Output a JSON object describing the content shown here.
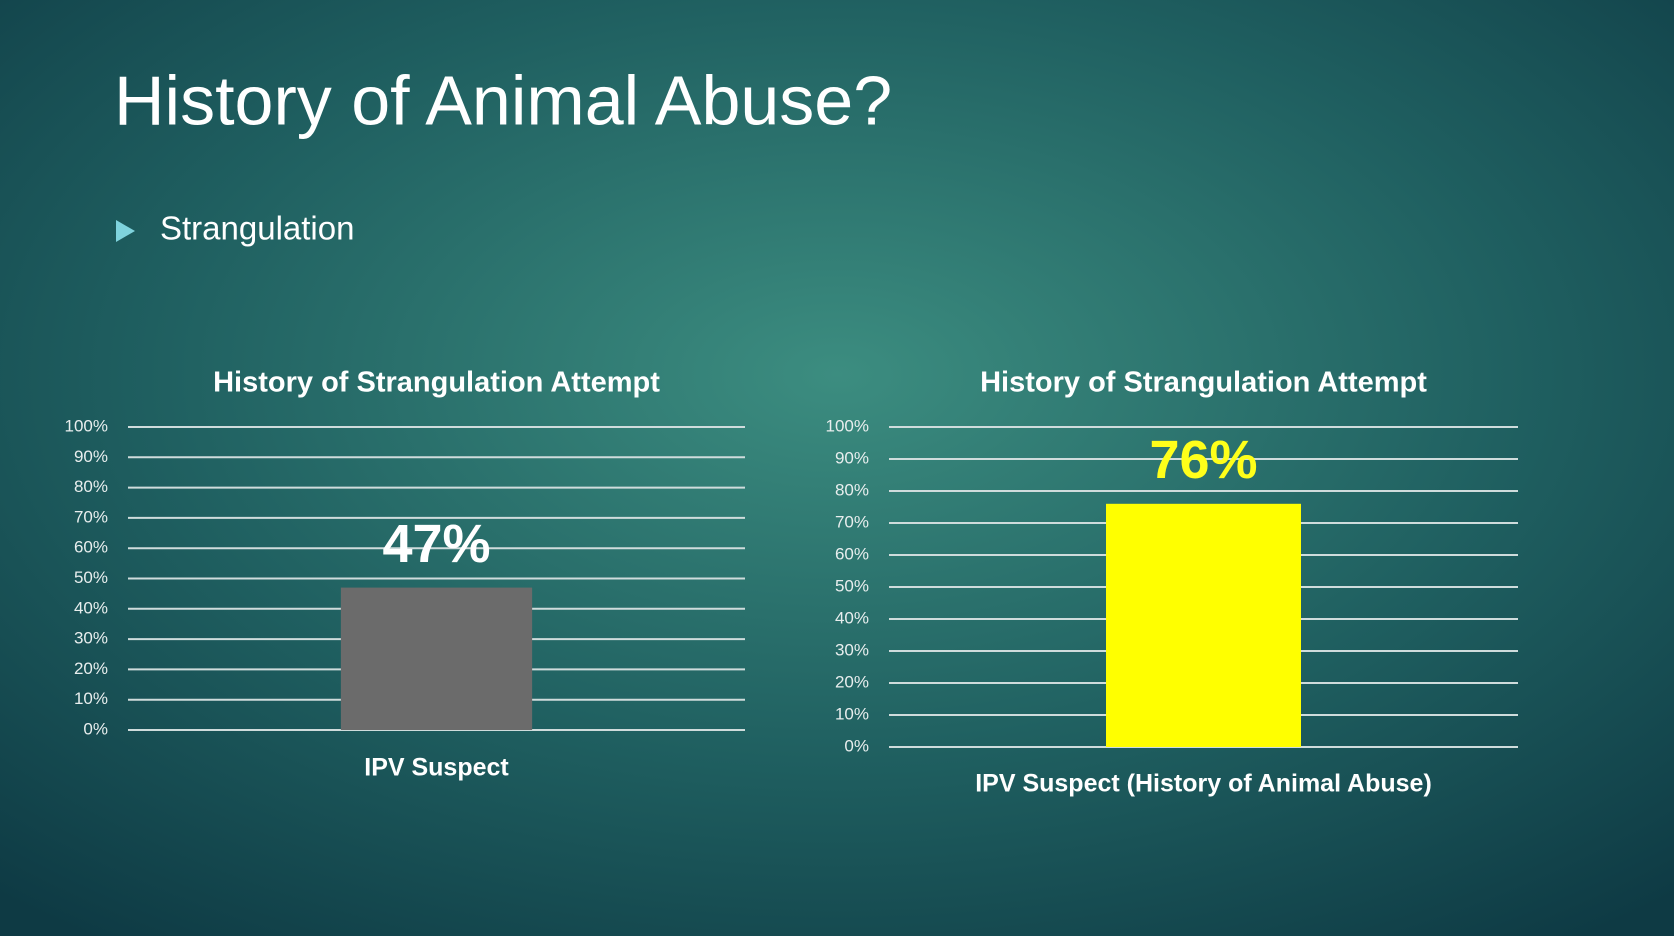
{
  "slide": {
    "title": "History of Animal Abuse?",
    "bullet": "Strangulation"
  },
  "chart_data": [
    {
      "type": "bar",
      "title": "History of Strangulation Attempt",
      "categories": [
        "IPV Suspect"
      ],
      "values": [
        47
      ],
      "value_labels": [
        "47%"
      ],
      "color": "#6b6b6b",
      "value_label_color": "#ffffff",
      "ylim": [
        0,
        100
      ],
      "yticks": [
        {
          "value": 0,
          "label": "0%"
        },
        {
          "value": 10,
          "label": "10%"
        },
        {
          "value": 20,
          "label": "20%"
        },
        {
          "value": 30,
          "label": "30%"
        },
        {
          "value": 40,
          "label": "40%"
        },
        {
          "value": 50,
          "label": "50%"
        },
        {
          "value": 60,
          "label": "60%"
        },
        {
          "value": 70,
          "label": "70%"
        },
        {
          "value": 80,
          "label": "80%"
        },
        {
          "value": 90,
          "label": "90%"
        },
        {
          "value": 100,
          "label": "100%"
        }
      ],
      "grid": true
    },
    {
      "type": "bar",
      "title": "History of Strangulation Attempt",
      "categories": [
        "IPV Suspect (History of Animal Abuse)"
      ],
      "values": [
        76
      ],
      "value_labels": [
        "76%"
      ],
      "color": "#ffff00",
      "value_label_color": "#ffff1a",
      "ylim": [
        0,
        100
      ],
      "yticks": [
        {
          "value": 0,
          "label": "0%"
        },
        {
          "value": 10,
          "label": "10%"
        },
        {
          "value": 20,
          "label": "20%"
        },
        {
          "value": 30,
          "label": "30%"
        },
        {
          "value": 40,
          "label": "40%"
        },
        {
          "value": 50,
          "label": "50%"
        },
        {
          "value": 60,
          "label": "60%"
        },
        {
          "value": 70,
          "label": "70%"
        },
        {
          "value": 80,
          "label": "80%"
        },
        {
          "value": 90,
          "label": "90%"
        },
        {
          "value": 100,
          "label": "100%"
        }
      ],
      "grid": true
    }
  ]
}
